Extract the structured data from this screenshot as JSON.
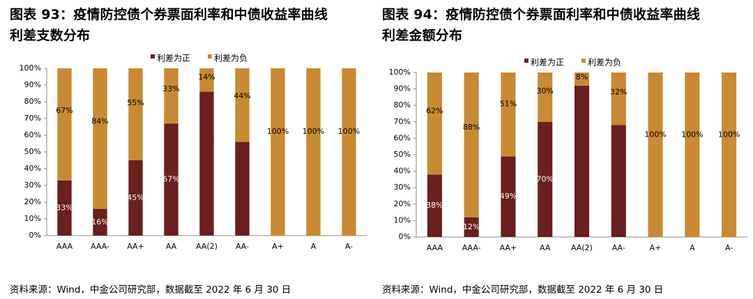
{
  "figures": [
    {
      "title_line1": "图表 93：疫情防控债个券票面利率和中债收益率曲线",
      "title_line2": "利差支数分布",
      "source": "资料来源：Wind，中金公司研究部，数据截至 2022 年 6 月 30 日"
    },
    {
      "title_line1": "图表 94：疫情防控债个券票面利率和中债收益率曲线",
      "title_line2": "利差金额分布",
      "source": "资料来源：Wind，中金公司研究部，数据截至 2022 年 6 月 30 日"
    }
  ],
  "chart_data": [
    {
      "type": "bar",
      "stacked": true,
      "categories": [
        "AAA",
        "AAA-",
        "AA+",
        "AA",
        "AA(2)",
        "AA-",
        "A+",
        "A",
        "A-"
      ],
      "series": [
        {
          "name": "利差为正",
          "color": "#6b1f1f",
          "values": [
            33,
            16,
            45,
            67,
            86,
            56,
            0,
            0,
            0
          ],
          "labels": [
            "33%",
            "16%",
            "45%",
            "67%",
            "",
            "",
            "",
            "",
            ""
          ]
        },
        {
          "name": "利差为负",
          "color": "#c98a33",
          "values": [
            67,
            84,
            55,
            33,
            14,
            44,
            100,
            100,
            100
          ],
          "labels": [
            "67%",
            "84%",
            "55%",
            "33%",
            "14%",
            "44%",
            "100%",
            "100%",
            "100%"
          ]
        }
      ],
      "ylim": [
        0,
        100
      ],
      "yticks": [
        "0%",
        "10%",
        "20%",
        "30%",
        "40%",
        "50%",
        "60%",
        "70%",
        "80%",
        "90%",
        "100%"
      ],
      "legend": "top"
    },
    {
      "type": "bar",
      "stacked": true,
      "categories": [
        "AAA",
        "AAA-",
        "AA+",
        "AA",
        "AA(2)",
        "AA-",
        "A+",
        "A",
        "A-"
      ],
      "series": [
        {
          "name": "利差为正",
          "color": "#6b1f1f",
          "values": [
            38,
            12,
            49,
            70,
            92,
            68,
            0,
            0,
            0
          ],
          "labels": [
            "38%",
            "12%",
            "49%",
            "70%",
            "",
            "",
            "",
            "",
            ""
          ]
        },
        {
          "name": "利差为负",
          "color": "#c98a33",
          "values": [
            62,
            88,
            51,
            30,
            8,
            32,
            100,
            100,
            100
          ],
          "labels": [
            "62%",
            "88%",
            "51%",
            "30%",
            "8%",
            "32%",
            "100%",
            "100%",
            "100%"
          ]
        }
      ],
      "ylim": [
        0,
        100
      ],
      "yticks": [
        "0%",
        "10%",
        "20%",
        "30%",
        "40%",
        "50%",
        "60%",
        "70%",
        "80%",
        "90%",
        "100%"
      ],
      "legend": "top"
    }
  ]
}
